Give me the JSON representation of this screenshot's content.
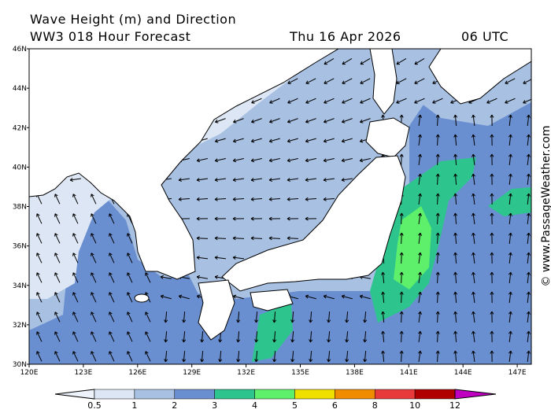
{
  "header": {
    "title": "Wave Height (m) and Direction",
    "subtitle": "WW3 018 Hour Forecast",
    "date": "Thu 16 Apr 2026",
    "time": "06 UTC"
  },
  "map": {
    "lat_labels": [
      "46N",
      "44N",
      "42N",
      "40N",
      "38N",
      "36N",
      "34N",
      "32N",
      "30N"
    ],
    "lon_labels": [
      "120E",
      "123E",
      "126E",
      "129E",
      "132E",
      "135E",
      "138E",
      "141E",
      "144E",
      "147E"
    ]
  },
  "legend": {
    "labels": [
      "0.5",
      "1",
      "2",
      "3",
      "4",
      "5",
      "6",
      "8",
      "10",
      "12"
    ],
    "colors": [
      "#dde6f4",
      "#a8c0e2",
      "#6a8fd0",
      "#2ec48e",
      "#5ef06a",
      "#f0e000",
      "#f08c00",
      "#e83a3a",
      "#b00000"
    ],
    "under_color": "#eef2fa",
    "over_color": "#c000c0"
  },
  "watermark": "© www.PassageWeather.com"
}
